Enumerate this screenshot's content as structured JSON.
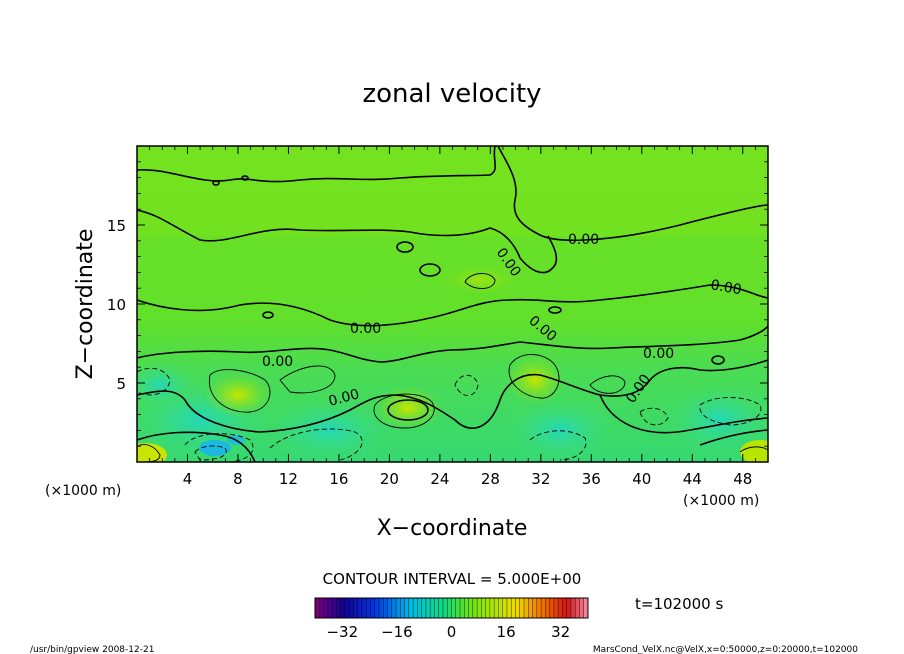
{
  "chart_data": {
    "type": "heatmap",
    "title": "zonal velocity",
    "xlabel": "X−coordinate",
    "ylabel": "Z−coordinate",
    "x_unit_left": "(×1000 m)",
    "x_unit_right": "(×1000 m)",
    "xlim": [
      0,
      50
    ],
    "ylim": [
      0,
      20
    ],
    "x_ticks": [
      4,
      8,
      12,
      16,
      20,
      24,
      28,
      32,
      36,
      40,
      44,
      48
    ],
    "y_ticks": [
      5,
      10,
      15
    ],
    "contour_labels": [
      "0.00",
      "0.00",
      "0.00",
      "0.00",
      "0.00",
      "0.00",
      "0.00",
      "0.00",
      "0.00"
    ],
    "contour_interval_text": "CONTOUR INTERVAL = 5.000E+00",
    "time_text": "t=102000 s",
    "colorbar": {
      "ticks": [
        "−32",
        "−16",
        "0",
        "16",
        "32"
      ],
      "range": [
        -40,
        40
      ]
    },
    "footer_left": "/usr/bin/gpview  2008-12-21",
    "footer_right": "MarsCond_VelX.nc@VelX,x=0:50000,z=0:20000,t=102000"
  }
}
